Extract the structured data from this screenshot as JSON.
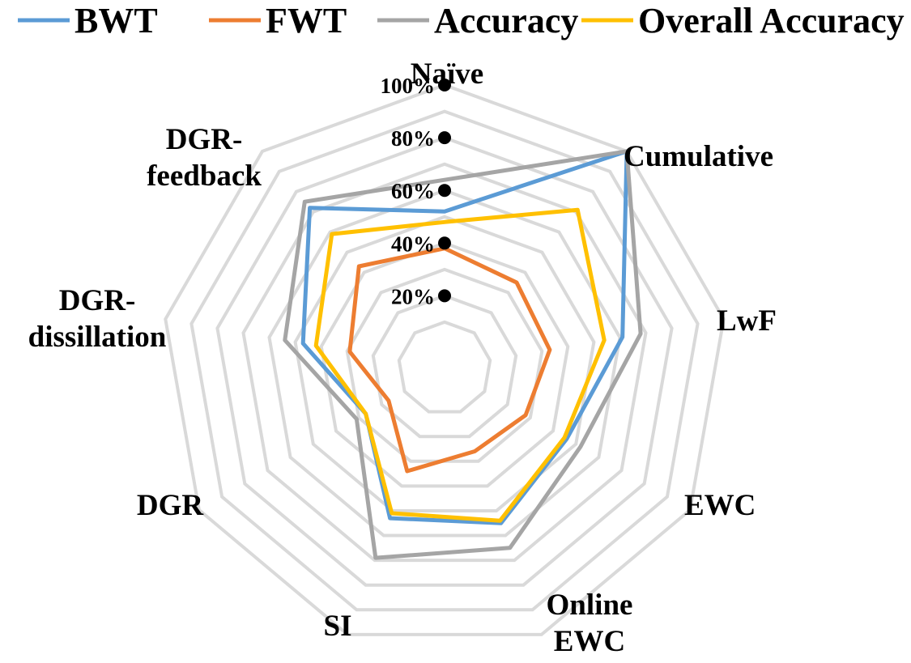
{
  "chart_data": {
    "type": "radar",
    "categories": [
      {
        "lines": [
          "Naïve"
        ]
      },
      {
        "lines": [
          "Cumulative"
        ]
      },
      {
        "lines": [
          "LwF"
        ]
      },
      {
        "lines": [
          "EWC"
        ]
      },
      {
        "lines": [
          "Online",
          "EWC"
        ]
      },
      {
        "lines": [
          "SI"
        ]
      },
      {
        "lines": [
          "DGR"
        ]
      },
      {
        "lines": [
          "DGR-",
          "dissillation"
        ]
      },
      {
        "lines": [
          "DGR-",
          "feedback"
        ]
      }
    ],
    "series": [
      {
        "name": "BWT",
        "color": "#5b9bd5",
        "values": [
          0.52,
          1.0,
          0.61,
          0.46,
          0.55,
          0.53,
          0.27,
          0.47,
          0.72
        ]
      },
      {
        "name": "FWT",
        "color": "#ed7d31",
        "values": [
          0.38,
          0.35,
          0.33,
          0.28,
          0.26,
          0.34,
          0.17,
          0.29,
          0.43
        ]
      },
      {
        "name": "Accuracy",
        "color": "#a5a5a5",
        "values": [
          0.64,
          1.0,
          0.68,
          0.52,
          0.65,
          0.69,
          0.31,
          0.54,
          0.75
        ]
      },
      {
        "name": "Overall Accuracy",
        "color": "#ffc000",
        "values": [
          0.48,
          0.71,
          0.54,
          0.45,
          0.54,
          0.51,
          0.27,
          0.42,
          0.59
        ]
      }
    ],
    "ticks": [
      "20%",
      "40%",
      "60%",
      "80%",
      "100%"
    ],
    "tick_values": [
      0.2,
      0.4,
      0.6,
      0.8,
      1.0
    ],
    "range": [
      0,
      1
    ],
    "grid": true,
    "legend": "top"
  }
}
